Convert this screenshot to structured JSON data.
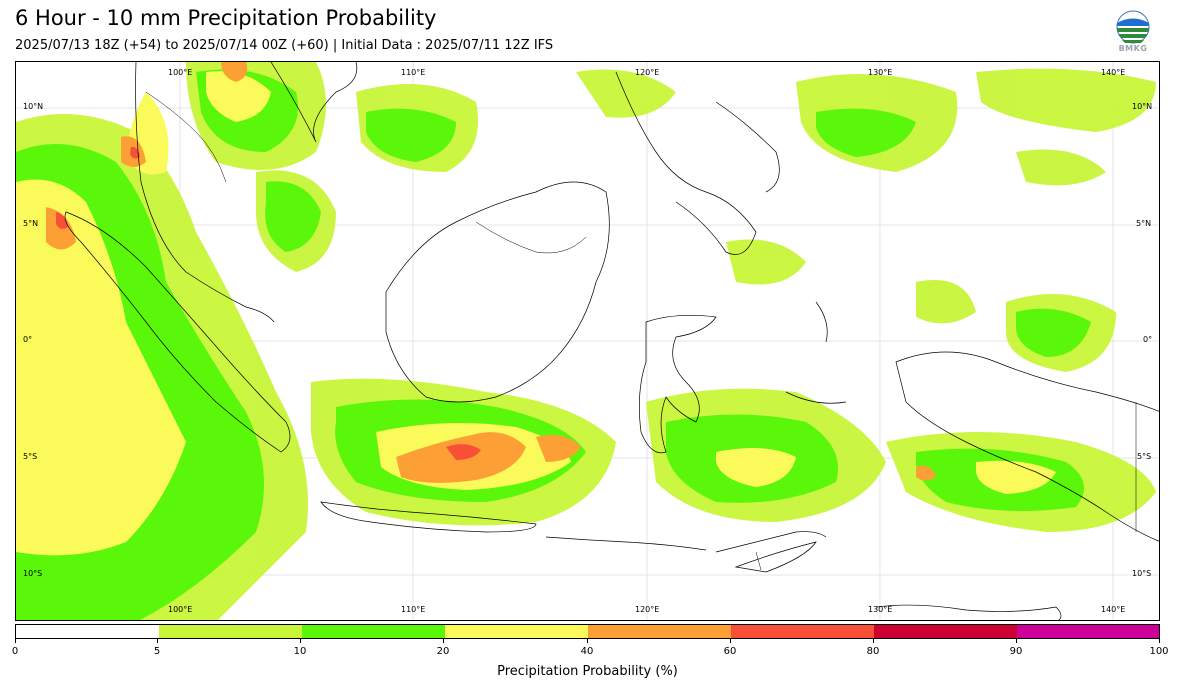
{
  "title": "6 Hour - 10 mm Precipitation Probability",
  "subtitle": "2025/07/13 18Z (+54) to 2025/07/14 00Z (+60) | Initial Data : 2025/07/11 12Z IFS",
  "logo": {
    "text": "BMKG",
    "icon": "bmkg-logo"
  },
  "map": {
    "region": "Indonesia",
    "lon_labels": [
      "100°E",
      "110°E",
      "120°E",
      "130°E",
      "140°E"
    ],
    "lat_labels": [
      "10°N",
      "5°N",
      "0°",
      "5°S",
      "10°S"
    ]
  },
  "colorbar": {
    "label": "Precipitation Probability (%)",
    "ticks": [
      "0",
      "5",
      "10",
      "20",
      "40",
      "60",
      "80",
      "90",
      "100"
    ],
    "colors": [
      "#ffffff",
      "#c8f538",
      "#5af70a",
      "#fafa5a",
      "#fca035",
      "#f75037",
      "#cc0033",
      "#cc0099"
    ]
  }
}
